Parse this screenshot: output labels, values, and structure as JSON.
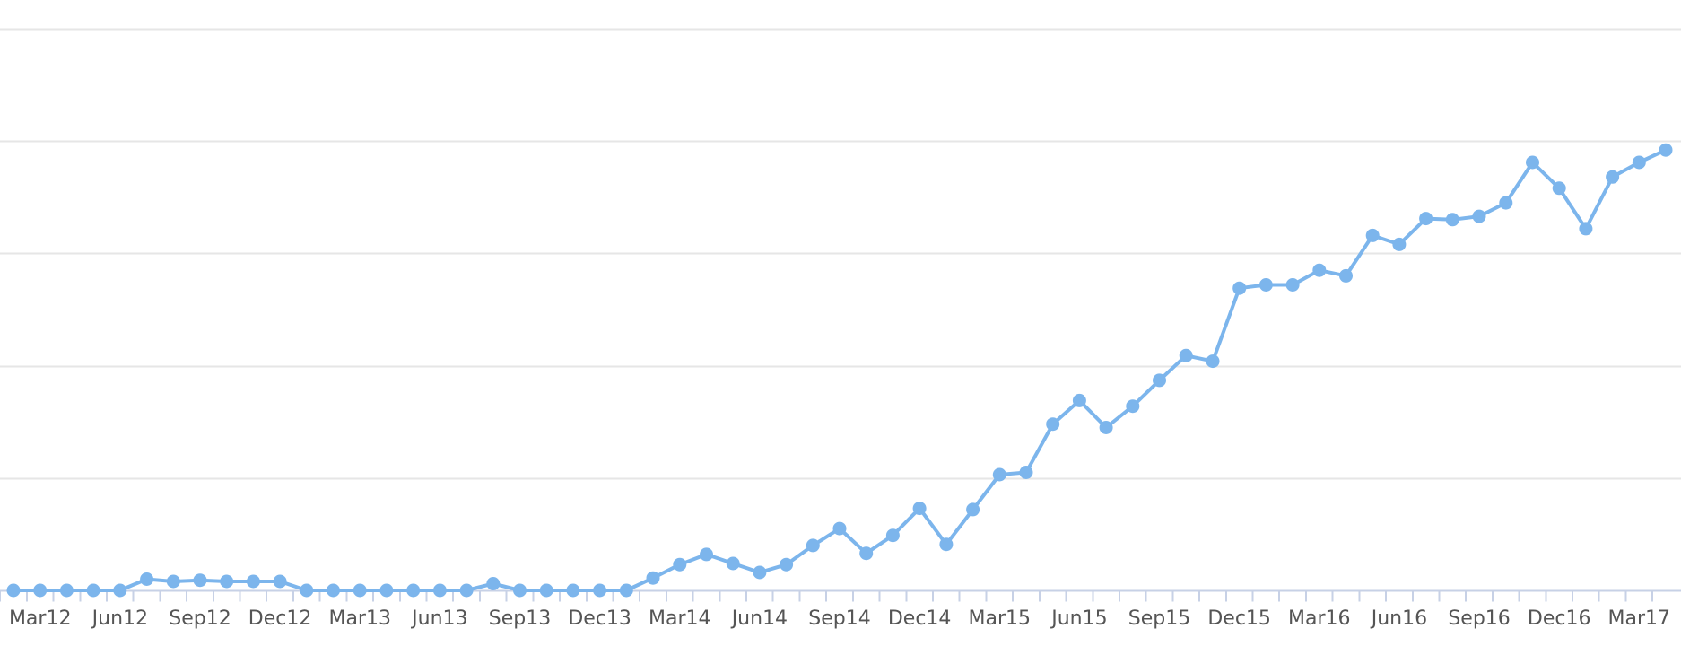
{
  "chart_data": {
    "type": "line",
    "x": [
      "Feb12",
      "Mar12",
      "Apr12",
      "May12",
      "Jun12",
      "Jul12",
      "Aug12",
      "Sep12",
      "Oct12",
      "Nov12",
      "Dec12",
      "Jan13",
      "Feb13",
      "Mar13",
      "Apr13",
      "May13",
      "Jun13",
      "Jul13",
      "Aug13",
      "Sep13",
      "Oct13",
      "Nov13",
      "Dec13",
      "Jan14",
      "Feb14",
      "Mar14",
      "Apr14",
      "May14",
      "Jun14",
      "Jul14",
      "Aug14",
      "Sep14",
      "Oct14",
      "Nov14",
      "Dec14",
      "Jan15",
      "Feb15",
      "Mar15",
      "Apr15",
      "May15",
      "Jun15",
      "Jul15",
      "Aug15",
      "Sep15",
      "Oct15",
      "Nov15",
      "Dec15",
      "Jan16",
      "Feb16",
      "Mar16",
      "Apr16",
      "May16",
      "Jun16",
      "Jul16",
      "Aug16",
      "Sep16",
      "Oct16",
      "Nov16",
      "Dec16",
      "Jan17",
      "Feb17",
      "Mar17",
      "Apr17"
    ],
    "series": [
      {
        "values": [
          0.0,
          0.0,
          0.0,
          0.0,
          0.0,
          0.1,
          0.08,
          0.09,
          0.08,
          0.08,
          0.08,
          0.0,
          0.0,
          0.0,
          0.0,
          0.0,
          0.0,
          0.0,
          0.06,
          0.0,
          0.0,
          0.0,
          0.0,
          0.0,
          0.11,
          0.23,
          0.32,
          0.24,
          0.16,
          0.23,
          0.4,
          0.55,
          0.33,
          0.49,
          0.73,
          0.41,
          0.72,
          1.03,
          1.05,
          1.48,
          1.69,
          1.45,
          1.64,
          1.87,
          2.09,
          2.04,
          2.69,
          2.72,
          2.72,
          2.85,
          2.8,
          3.16,
          3.08,
          3.31,
          3.3,
          3.33,
          3.45,
          3.81,
          3.58,
          3.22,
          3.68,
          3.81,
          3.92
        ],
        "color": "#7cb5ec"
      }
    ],
    "x_tick_labels": [
      "Mar12",
      "Jun12",
      "Sep12",
      "Dec12",
      "Mar13",
      "Jun13",
      "Sep13",
      "Dec13",
      "Mar14",
      "Jun14",
      "Sep14",
      "Dec14",
      "Mar15",
      "Jun15",
      "Sep15",
      "Dec15",
      "Mar16",
      "Jun16",
      "Sep16",
      "Dec16",
      "Mar17"
    ],
    "ylim": [
      0,
      5
    ],
    "y_gridlines": [
      0,
      1,
      2,
      3,
      4,
      5
    ],
    "grid": true,
    "legend": "none",
    "title": "",
    "xlabel": "",
    "ylabel": ""
  }
}
